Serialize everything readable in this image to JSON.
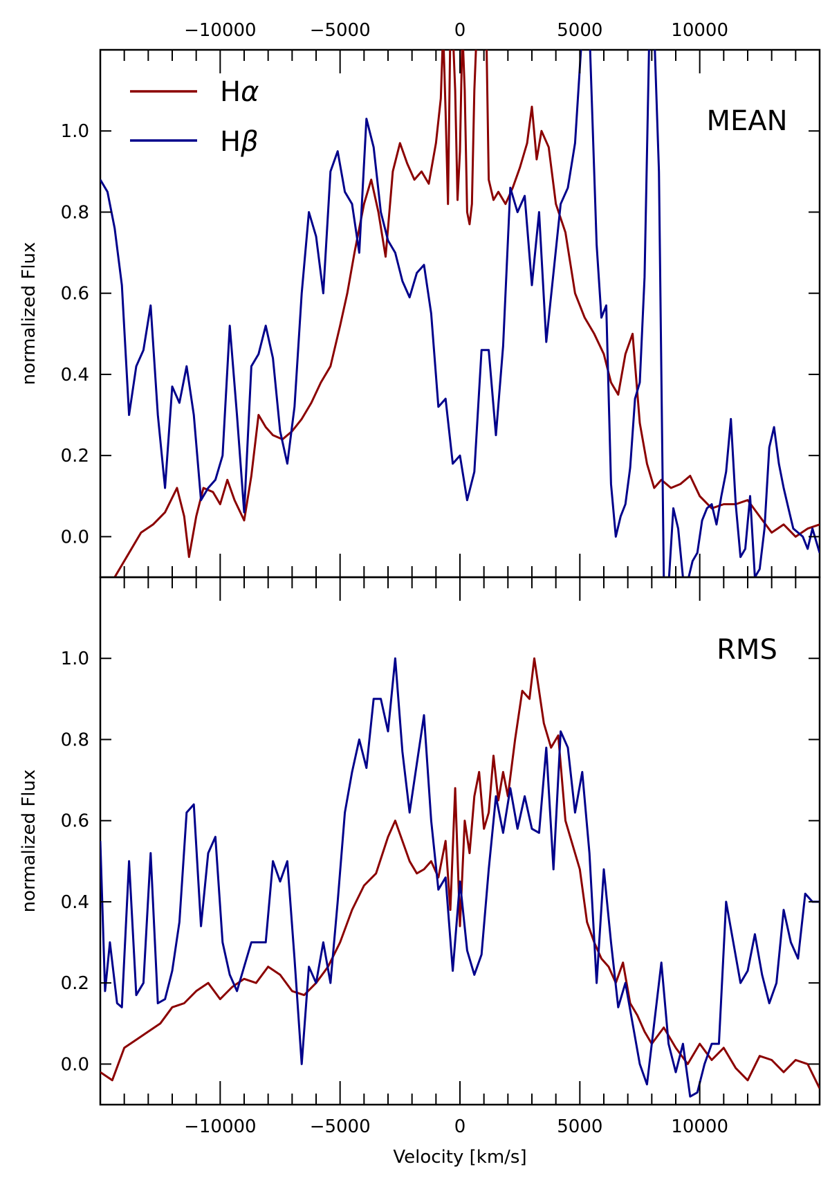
{
  "colors": {
    "halpha": "#8b0000",
    "hbeta": "#00008b"
  },
  "legend": [
    {
      "name": "Hα",
      "base": "H",
      "greek": "α",
      "color": "#8b0000"
    },
    {
      "name": "Hβ",
      "base": "H",
      "greek": "β",
      "color": "#00008b"
    }
  ],
  "chart_data": [
    {
      "type": "line",
      "panel_label": "MEAN",
      "xlabel": "",
      "ylabel": "normalized Flux",
      "xlim": [
        -15000,
        15000
      ],
      "ylim": [
        -0.1,
        1.2
      ],
      "yticks": [
        0.0,
        0.2,
        0.4,
        0.6,
        0.8,
        1.0
      ],
      "ytick_labels": [
        "0.0",
        "0.2",
        "0.4",
        "0.6",
        "0.8",
        "1.0"
      ],
      "xticks_top": [
        -10000,
        -5000,
        0,
        5000,
        10000
      ],
      "xtick_top_labels": [
        "−10000",
        "−5000",
        "0",
        "5000",
        "10000"
      ],
      "series": [
        {
          "name": "Hα",
          "x": [
            -14500,
            -13800,
            -13300,
            -12800,
            -12300,
            -11800,
            -11500,
            -11300,
            -11000,
            -10700,
            -10300,
            -10000,
            -9700,
            -9400,
            -9000,
            -8700,
            -8400,
            -8100,
            -7800,
            -7400,
            -7000,
            -6600,
            -6200,
            -5800,
            -5400,
            -5000,
            -4700,
            -4400,
            -4000,
            -3700,
            -3400,
            -3100,
            -2800,
            -2500,
            -2200,
            -1900,
            -1600,
            -1300,
            -1000,
            -800,
            -700,
            -600,
            -500,
            -400,
            -300,
            -200,
            -100,
            0,
            100,
            200,
            300,
            400,
            500,
            600,
            700,
            800,
            900,
            1000,
            1100,
            1200,
            1400,
            1600,
            1900,
            2200,
            2500,
            2800,
            3000,
            3200,
            3400,
            3700,
            4000,
            4400,
            4800,
            5200,
            5600,
            6000,
            6300,
            6600,
            6900,
            7200,
            7500,
            7800,
            8100,
            8400,
            8800,
            9200,
            9600,
            10000,
            10500,
            11000,
            11500,
            12000,
            12500,
            13000,
            13500,
            14000,
            14500,
            15000
          ],
          "values": [
            -0.11,
            -0.04,
            0.01,
            0.03,
            0.06,
            0.12,
            0.05,
            -0.05,
            0.05,
            0.12,
            0.11,
            0.08,
            0.14,
            0.09,
            0.04,
            0.15,
            0.3,
            0.27,
            0.25,
            0.24,
            0.26,
            0.29,
            0.33,
            0.38,
            0.42,
            0.52,
            0.6,
            0.7,
            0.82,
            0.88,
            0.8,
            0.69,
            0.9,
            0.97,
            0.92,
            0.88,
            0.9,
            0.87,
            0.97,
            1.08,
            1.25,
            1.05,
            0.82,
            1.25,
            1.25,
            1.1,
            0.83,
            0.95,
            1.25,
            1.1,
            0.8,
            0.77,
            0.82,
            1.1,
            1.25,
            1.25,
            1.25,
            1.25,
            1.25,
            0.88,
            0.83,
            0.85,
            0.82,
            0.86,
            0.91,
            0.97,
            1.06,
            0.93,
            1.0,
            0.96,
            0.82,
            0.75,
            0.6,
            0.54,
            0.5,
            0.45,
            0.38,
            0.35,
            0.45,
            0.5,
            0.28,
            0.18,
            0.12,
            0.14,
            0.12,
            0.13,
            0.15,
            0.1,
            0.07,
            0.08,
            0.08,
            0.09,
            0.05,
            0.01,
            0.03,
            0.0,
            0.02,
            0.03
          ]
        },
        {
          "name": "Hβ",
          "x": [
            -15000,
            -14700,
            -14400,
            -14100,
            -13800,
            -13500,
            -13200,
            -12900,
            -12600,
            -12300,
            -12000,
            -11700,
            -11400,
            -11100,
            -10800,
            -10500,
            -10200,
            -9900,
            -9600,
            -9300,
            -9000,
            -8700,
            -8400,
            -8100,
            -7800,
            -7500,
            -7200,
            -6900,
            -6600,
            -6300,
            -6000,
            -5700,
            -5400,
            -5100,
            -4800,
            -4500,
            -4200,
            -3900,
            -3600,
            -3300,
            -3000,
            -2700,
            -2400,
            -2100,
            -1800,
            -1500,
            -1200,
            -900,
            -600,
            -300,
            0,
            300,
            600,
            900,
            1200,
            1500,
            1800,
            2100,
            2400,
            2700,
            3000,
            3300,
            3600,
            3900,
            4200,
            4500,
            4800,
            5100,
            5400,
            5700,
            5900,
            6100,
            6300,
            6500,
            6700,
            6900,
            7100,
            7300,
            7500,
            7700,
            7900,
            8100,
            8300,
            8500,
            8700,
            8900,
            9100,
            9300,
            9500,
            9700,
            9900,
            10100,
            10300,
            10500,
            10700,
            10900,
            11100,
            11300,
            11500,
            11700,
            11900,
            12100,
            12300,
            12500,
            12700,
            12900,
            13100,
            13300,
            13500,
            13700,
            13900,
            14100,
            14300,
            14500,
            14700,
            15000
          ],
          "values": [
            0.88,
            0.85,
            0.76,
            0.62,
            0.3,
            0.42,
            0.46,
            0.57,
            0.3,
            0.12,
            0.37,
            0.33,
            0.42,
            0.3,
            0.09,
            0.12,
            0.14,
            0.2,
            0.52,
            0.3,
            0.06,
            0.42,
            0.45,
            0.52,
            0.44,
            0.26,
            0.18,
            0.32,
            0.6,
            0.8,
            0.74,
            0.6,
            0.9,
            0.95,
            0.85,
            0.82,
            0.7,
            1.03,
            0.96,
            0.8,
            0.73,
            0.7,
            0.63,
            0.59,
            0.65,
            0.67,
            0.55,
            0.32,
            0.34,
            0.18,
            0.2,
            0.09,
            0.16,
            0.46,
            0.46,
            0.25,
            0.47,
            0.86,
            0.8,
            0.84,
            0.62,
            0.8,
            0.48,
            0.65,
            0.82,
            0.86,
            0.97,
            1.25,
            1.25,
            0.72,
            0.54,
            0.57,
            0.13,
            0.0,
            0.05,
            0.08,
            0.17,
            0.34,
            0.38,
            0.64,
            1.25,
            1.25,
            0.9,
            -0.1,
            -0.12,
            0.07,
            0.02,
            -0.1,
            -0.11,
            -0.06,
            -0.04,
            0.04,
            0.07,
            0.08,
            0.03,
            0.1,
            0.16,
            0.29,
            0.08,
            -0.05,
            -0.03,
            0.1,
            -0.1,
            -0.08,
            0.02,
            0.22,
            0.27,
            0.18,
            0.12,
            0.07,
            0.02,
            0.01,
            0.0,
            -0.03,
            0.02,
            -0.04
          ]
        }
      ]
    },
    {
      "type": "line",
      "panel_label": "RMS",
      "xlabel": "Velocity [km/s]",
      "ylabel": "normalized Flux",
      "xlim": [
        -15000,
        15000
      ],
      "ylim": [
        -0.1,
        1.2
      ],
      "yticks": [
        0.0,
        0.2,
        0.4,
        0.6,
        0.8,
        1.0
      ],
      "ytick_labels": [
        "0.0",
        "0.2",
        "0.4",
        "0.6",
        "0.8",
        "1.0"
      ],
      "xticks": [
        -10000,
        -5000,
        0,
        5000,
        10000
      ],
      "xtick_labels": [
        "−10000",
        "−5000",
        "0",
        "5000",
        "10000"
      ],
      "series": [
        {
          "name": "Hα",
          "x": [
            -15000,
            -14500,
            -14000,
            -13500,
            -13000,
            -12500,
            -12000,
            -11500,
            -11000,
            -10500,
            -10000,
            -9500,
            -9000,
            -8500,
            -8000,
            -7500,
            -7000,
            -6500,
            -6000,
            -5500,
            -5000,
            -4500,
            -4000,
            -3500,
            -3000,
            -2700,
            -2400,
            -2100,
            -1800,
            -1500,
            -1200,
            -900,
            -600,
            -400,
            -200,
            0,
            200,
            400,
            600,
            800,
            1000,
            1200,
            1400,
            1600,
            1800,
            2000,
            2300,
            2600,
            2900,
            3100,
            3300,
            3500,
            3800,
            4100,
            4400,
            4700,
            5000,
            5300,
            5600,
            5900,
            6200,
            6500,
            6800,
            7100,
            7400,
            7700,
            8000,
            8500,
            9000,
            9500,
            10000,
            10500,
            11000,
            11500,
            12000,
            12500,
            13000,
            13500,
            14000,
            14500,
            15000
          ],
          "values": [
            -0.02,
            -0.04,
            0.04,
            0.06,
            0.08,
            0.1,
            0.14,
            0.15,
            0.18,
            0.2,
            0.16,
            0.19,
            0.21,
            0.2,
            0.24,
            0.22,
            0.18,
            0.17,
            0.2,
            0.24,
            0.3,
            0.38,
            0.44,
            0.47,
            0.56,
            0.6,
            0.55,
            0.5,
            0.47,
            0.48,
            0.5,
            0.46,
            0.55,
            0.38,
            0.68,
            0.34,
            0.6,
            0.52,
            0.66,
            0.72,
            0.58,
            0.62,
            0.76,
            0.65,
            0.72,
            0.66,
            0.8,
            0.92,
            0.9,
            1.0,
            0.92,
            0.84,
            0.78,
            0.81,
            0.6,
            0.54,
            0.48,
            0.35,
            0.3,
            0.26,
            0.24,
            0.2,
            0.25,
            0.15,
            0.12,
            0.08,
            0.05,
            0.09,
            0.04,
            0.0,
            0.05,
            0.01,
            0.04,
            -0.01,
            -0.04,
            0.02,
            0.01,
            -0.02,
            0.01,
            0.0,
            -0.06
          ]
        },
        {
          "name": "Hβ",
          "x": [
            -15000,
            -14800,
            -14600,
            -14300,
            -14100,
            -13800,
            -13500,
            -13200,
            -12900,
            -12600,
            -12300,
            -12000,
            -11700,
            -11400,
            -11100,
            -10800,
            -10500,
            -10200,
            -9900,
            -9600,
            -9300,
            -9000,
            -8700,
            -8400,
            -8100,
            -7800,
            -7500,
            -7200,
            -6900,
            -6600,
            -6300,
            -6000,
            -5700,
            -5400,
            -5100,
            -4800,
            -4500,
            -4200,
            -3900,
            -3600,
            -3300,
            -3000,
            -2700,
            -2400,
            -2100,
            -1800,
            -1500,
            -1200,
            -900,
            -600,
            -300,
            0,
            300,
            600,
            900,
            1200,
            1500,
            1800,
            2100,
            2400,
            2700,
            3000,
            3300,
            3600,
            3900,
            4200,
            4500,
            4800,
            5100,
            5400,
            5700,
            6000,
            6300,
            6600,
            6900,
            7200,
            7500,
            7800,
            8100,
            8400,
            8700,
            9000,
            9300,
            9600,
            9900,
            10200,
            10500,
            10800,
            11100,
            11400,
            11700,
            12000,
            12300,
            12600,
            12900,
            13200,
            13500,
            13800,
            14100,
            14400,
            14700,
            15000
          ],
          "values": [
            0.55,
            0.18,
            0.3,
            0.15,
            0.14,
            0.5,
            0.17,
            0.2,
            0.52,
            0.15,
            0.16,
            0.23,
            0.35,
            0.62,
            0.64,
            0.34,
            0.52,
            0.56,
            0.3,
            0.22,
            0.18,
            0.24,
            0.3,
            0.3,
            0.3,
            0.5,
            0.45,
            0.5,
            0.26,
            0.0,
            0.24,
            0.2,
            0.3,
            0.2,
            0.4,
            0.62,
            0.72,
            0.8,
            0.73,
            0.9,
            0.9,
            0.82,
            1.0,
            0.77,
            0.62,
            0.74,
            0.86,
            0.6,
            0.43,
            0.46,
            0.23,
            0.45,
            0.28,
            0.22,
            0.27,
            0.48,
            0.66,
            0.57,
            0.68,
            0.58,
            0.66,
            0.58,
            0.57,
            0.78,
            0.48,
            0.82,
            0.78,
            0.62,
            0.72,
            0.52,
            0.2,
            0.48,
            0.3,
            0.14,
            0.2,
            0.1,
            0.0,
            -0.05,
            0.1,
            0.25,
            0.05,
            -0.02,
            0.05,
            -0.08,
            -0.07,
            0.0,
            0.05,
            0.05,
            0.4,
            0.3,
            0.2,
            0.23,
            0.32,
            0.22,
            0.15,
            0.2,
            0.38,
            0.3,
            0.26,
            0.42,
            0.4,
            0.4
          ]
        }
      ]
    }
  ]
}
